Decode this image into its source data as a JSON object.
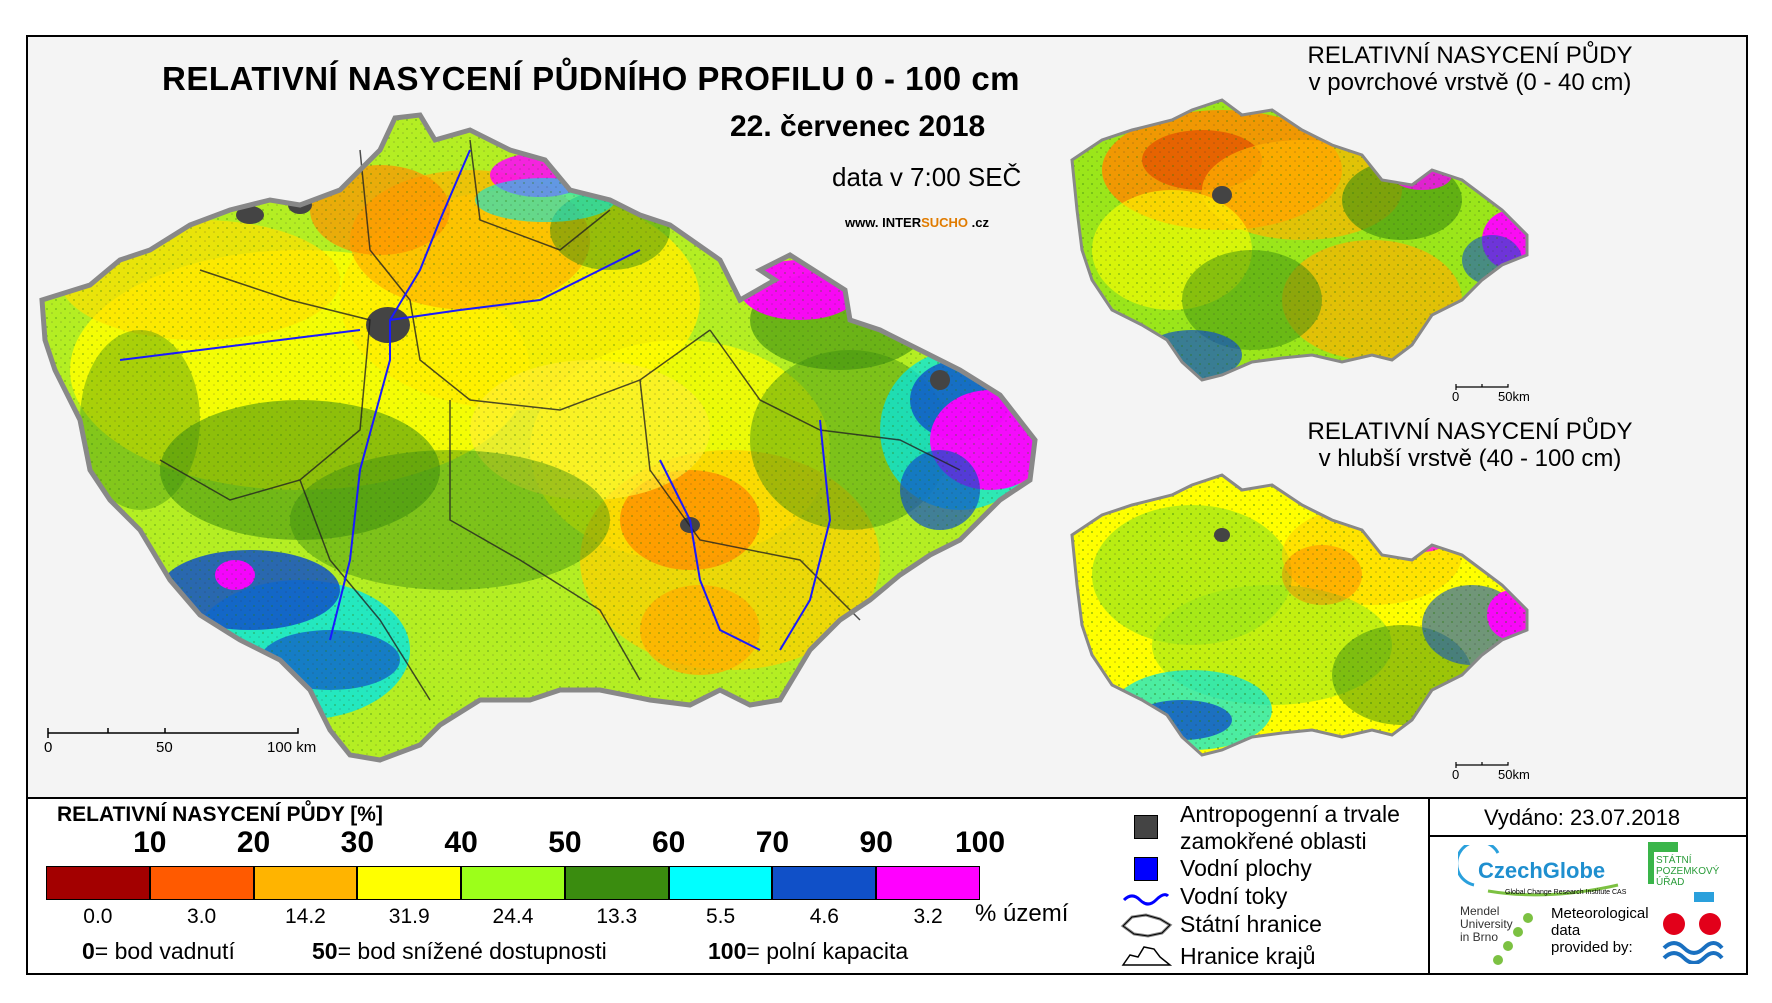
{
  "header": {
    "title": "RELATIVNÍ NASYCENÍ PŮDNÍHO PROFILU 0 - 100 cm",
    "date": "22. červenec 2018",
    "time": "data v 7:00 SEČ",
    "www_prefix": "www. INTER",
    "www_highlight": "SUCHO",
    "www_suffix": " .cz"
  },
  "inset_top": {
    "title_line1": "RELATIVNÍ NASYCENÍ PŮDY",
    "title_line2": "v povrchové vrstvě (0 - 40 cm)",
    "scale_0": "0",
    "scale_50": "50km"
  },
  "inset_bottom": {
    "title_line1": "RELATIVNÍ NASYCENÍ PŮDY",
    "title_line2": "v hlubší vrstvě (40 - 100 cm)",
    "scale_0": "0",
    "scale_50": "50km"
  },
  "main_scale": {
    "s0": "0",
    "s50": "50",
    "s100": "100 km"
  },
  "legend": {
    "title": "RELATIVNÍ NASYCENÍ PŮDY [%]",
    "thresholds": [
      "10",
      "20",
      "30",
      "40",
      "50",
      "60",
      "70",
      "90",
      "100"
    ],
    "classes": [
      {
        "color": "#a30000",
        "pct": "0.0"
      },
      {
        "color": "#ff5a00",
        "pct": "3.0"
      },
      {
        "color": "#ffb400",
        "pct": "14.2"
      },
      {
        "color": "#ffff00",
        "pct": "31.9"
      },
      {
        "color": "#9cff1a",
        "pct": "24.4"
      },
      {
        "color": "#3a8c0f",
        "pct": "13.3"
      },
      {
        "color": "#00ffff",
        "pct": "5.5"
      },
      {
        "color": "#1050c8",
        "pct": "4.6"
      },
      {
        "color": "#ff00ff",
        "pct": "3.2"
      }
    ],
    "pct_unit": "% území",
    "notes": [
      {
        "value": "0",
        "text": "= bod vadnutí"
      },
      {
        "value": "50",
        "text": "= bod snížené dostupnosti"
      },
      {
        "value": "100",
        "text": "= polní kapacita"
      }
    ]
  },
  "symbols": [
    {
      "name": "Antropogenní a trvale",
      "name2": "zamokřené oblasti",
      "color": "#444444"
    },
    {
      "name": "Vodní plochy",
      "color": "#0000ff"
    },
    {
      "name": "Vodní toky",
      "color": "#0000ff"
    },
    {
      "name": "Státní hranice",
      "color": "#000000"
    },
    {
      "name": "Hranice krajů",
      "color": "#000000"
    }
  ],
  "issued": "Vydáno: 23.07.2018",
  "credits": {
    "czechglobe": "CzechGlobe",
    "czechglobe_sub": "Global Change Research Institute CAS",
    "szu_1": "STÁTNÍ",
    "szu_2": "POZEMKOVÝ",
    "szu_3": "ÚŘAD",
    "mendel_1": "Mendel",
    "mendel_2": "University",
    "mendel_3": "in Brno",
    "meteo_1": "Meteorological",
    "meteo_2": "data",
    "meteo_3": "provided by:"
  }
}
